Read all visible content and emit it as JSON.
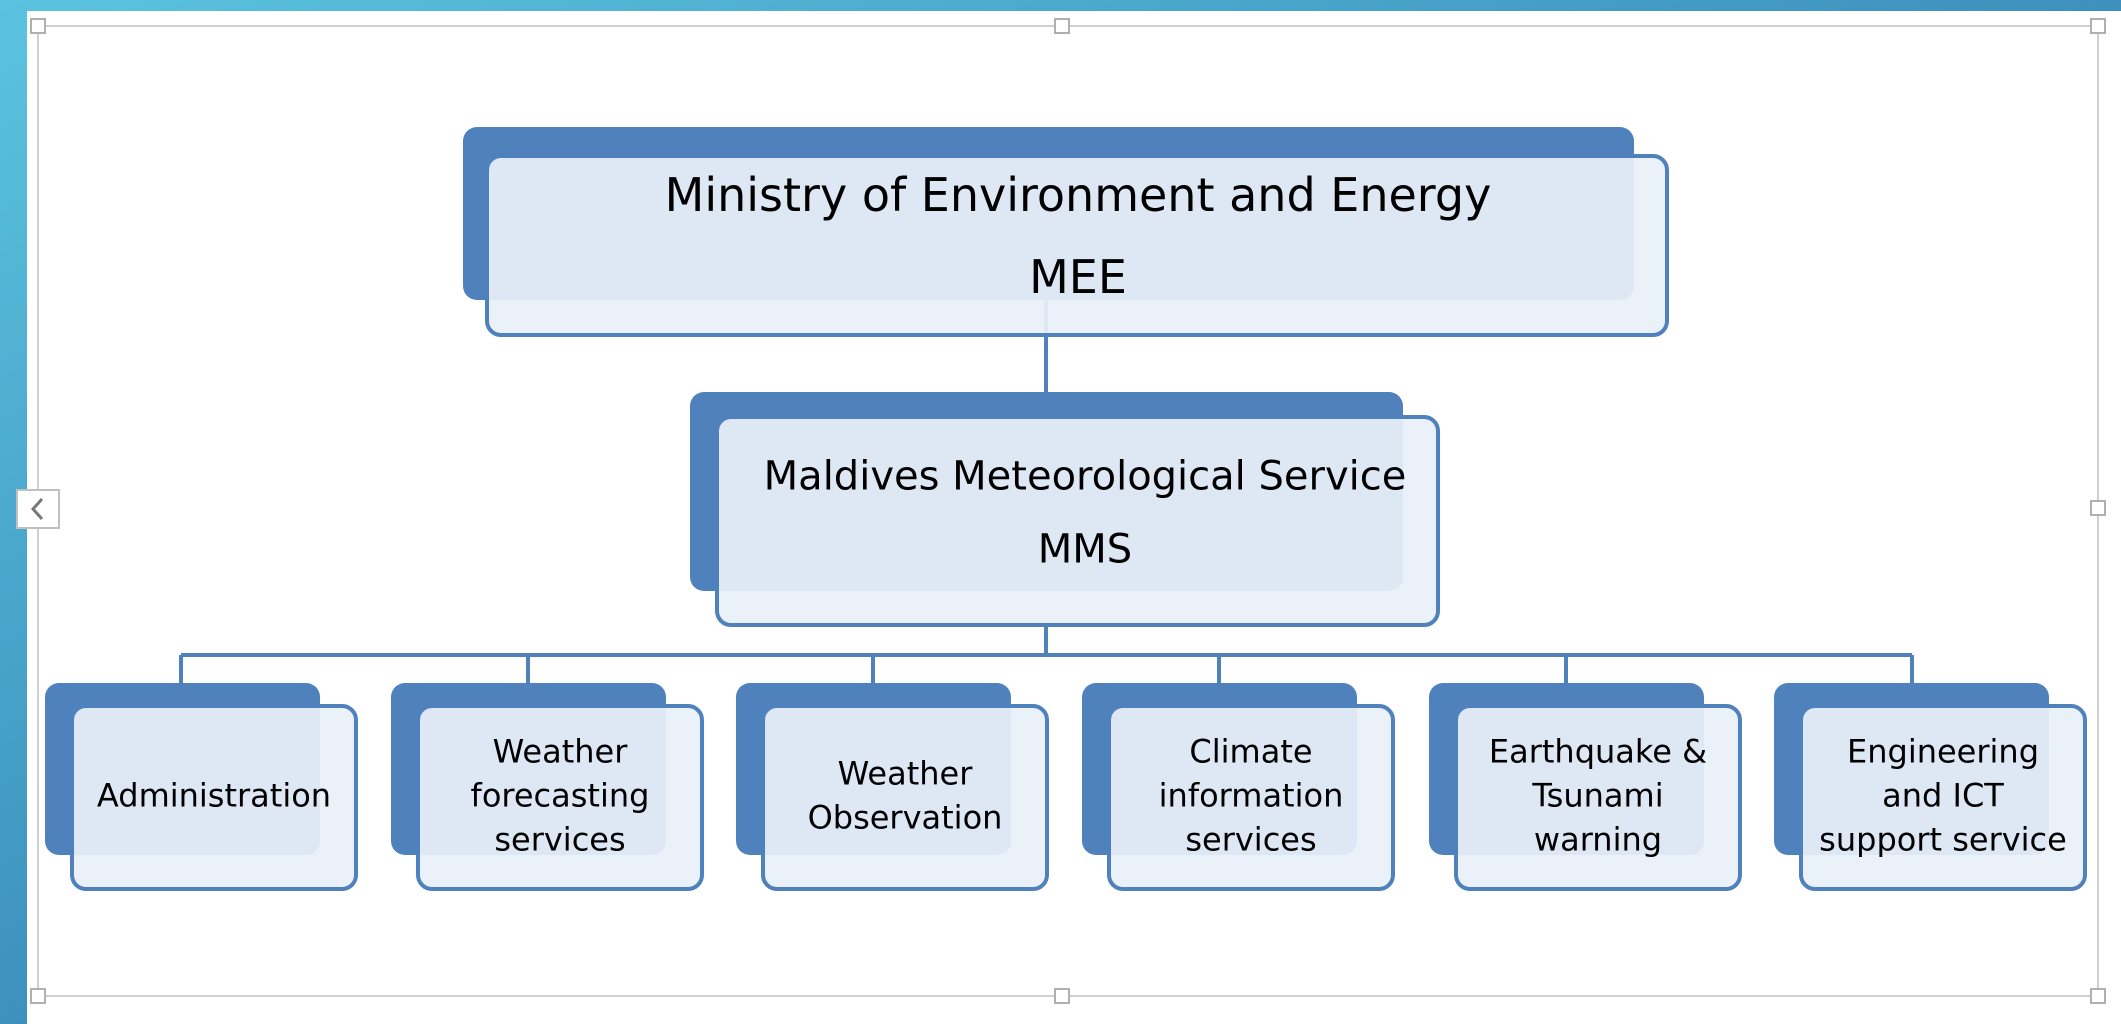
{
  "nodes": [
    {
      "lines": [
        "Ministry of Environment and Energy",
        "MEE"
      ]
    },
    {
      "lines": [
        "Maldives Meteorological Service",
        "MMS"
      ]
    },
    {
      "lines": [
        "Administration"
      ]
    },
    {
      "lines": [
        "Weather",
        "forecasting",
        "services"
      ]
    },
    {
      "lines": [
        "Weather",
        "Observation"
      ]
    },
    {
      "lines": [
        "Climate",
        "information",
        "services"
      ]
    },
    {
      "lines": [
        "Earthquake &",
        "Tsunami",
        "warning"
      ]
    },
    {
      "lines": [
        "Engineering",
        "and ICT",
        "support service"
      ]
    }
  ]
}
